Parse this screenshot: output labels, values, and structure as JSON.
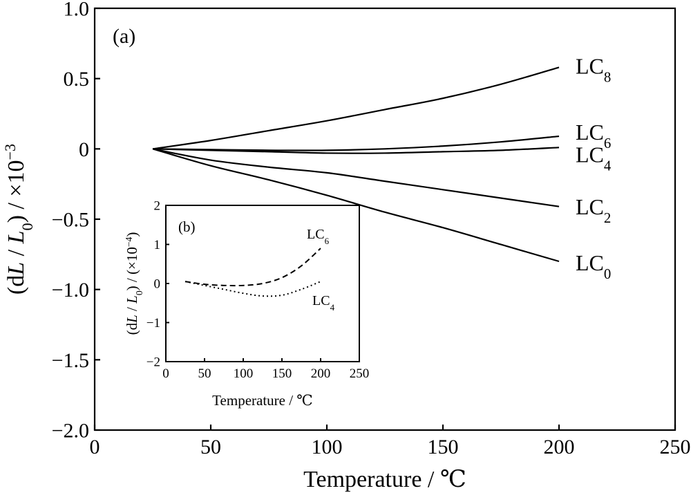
{
  "chart_data": [
    {
      "type": "line",
      "panel_label": "(a)",
      "xlabel": "Temperature / ℃",
      "ylabel": "(dL / L0) / ×10⁻³",
      "ylabel_parts": [
        "(d",
        "L",
        " / ",
        "L",
        "0",
        ") / ×10",
        "−3"
      ],
      "xlim": [
        0,
        250
      ],
      "ylim": [
        -2.0,
        1.0
      ],
      "xticks": [
        0,
        50,
        100,
        150,
        200,
        250
      ],
      "xtick_labels": [
        "0",
        "50",
        "100",
        "150",
        "200",
        "250"
      ],
      "yticks": [
        1.0,
        0.5,
        0,
        -0.5,
        -1.0,
        -1.5,
        -2.0
      ],
      "ytick_labels": [
        "1.0",
        "0.5",
        "0",
        "−0.5",
        "−1.0",
        "−1.5",
        "−2.0"
      ],
      "series": [
        {
          "name": "LC8",
          "label_main": "LC",
          "label_sub": "8",
          "style": "solid",
          "x": [
            25,
            50,
            75,
            100,
            125,
            150,
            175,
            200
          ],
          "y": [
            0,
            0.06,
            0.13,
            0.2,
            0.28,
            0.36,
            0.46,
            0.58
          ]
        },
        {
          "name": "LC6",
          "label_main": "LC",
          "label_sub": "6",
          "style": "solid",
          "x": [
            25,
            50,
            75,
            100,
            125,
            150,
            175,
            200
          ],
          "y": [
            0,
            -0.005,
            -0.01,
            -0.01,
            0.0,
            0.02,
            0.05,
            0.09
          ]
        },
        {
          "name": "LC4",
          "label_main": "LC",
          "label_sub": "4",
          "style": "solid",
          "x": [
            25,
            50,
            75,
            100,
            125,
            150,
            175,
            200
          ],
          "y": [
            0,
            -0.01,
            -0.02,
            -0.03,
            -0.03,
            -0.02,
            -0.01,
            0.01
          ]
        },
        {
          "name": "LC2",
          "label_main": "LC",
          "label_sub": "2",
          "style": "solid",
          "x": [
            25,
            50,
            75,
            100,
            125,
            150,
            175,
            200
          ],
          "y": [
            0,
            -0.08,
            -0.13,
            -0.17,
            -0.23,
            -0.29,
            -0.35,
            -0.41
          ]
        },
        {
          "name": "LC0",
          "label_main": "LC",
          "label_sub": "0",
          "style": "solid",
          "x": [
            25,
            50,
            75,
            100,
            125,
            150,
            175,
            200
          ],
          "y": [
            0,
            -0.12,
            -0.22,
            -0.33,
            -0.45,
            -0.56,
            -0.68,
            -0.8
          ]
        }
      ]
    },
    {
      "type": "line",
      "panel_label": "(b)",
      "xlabel": "Temperature / ℃",
      "ylabel": "(dL / L0) / (×10⁻⁴)",
      "ylabel_parts": [
        "(d",
        "L",
        " / ",
        "L",
        "0",
        ") / (×10",
        "−4",
        ")"
      ],
      "xlim": [
        0,
        250
      ],
      "ylim": [
        -2,
        2
      ],
      "xticks": [
        0,
        50,
        100,
        150,
        200,
        250
      ],
      "xtick_labels": [
        "0",
        "50",
        "100",
        "150",
        "200",
        "250"
      ],
      "yticks": [
        2,
        1,
        0,
        -1,
        -2
      ],
      "ytick_labels": [
        "2",
        "1",
        "0",
        "−1",
        "−2"
      ],
      "series": [
        {
          "name": "LC6",
          "label_main": "LC",
          "label_sub": "6",
          "style": "dashed",
          "x": [
            25,
            50,
            75,
            100,
            125,
            150,
            175,
            200
          ],
          "y": [
            0.05,
            -0.02,
            -0.05,
            -0.05,
            0.0,
            0.15,
            0.45,
            0.9
          ]
        },
        {
          "name": "LC4",
          "label_main": "LC",
          "label_sub": "4",
          "style": "dotted",
          "x": [
            25,
            50,
            75,
            100,
            125,
            150,
            175,
            200
          ],
          "y": [
            0.05,
            -0.05,
            -0.15,
            -0.25,
            -0.32,
            -0.3,
            -0.15,
            0.05
          ]
        }
      ]
    }
  ]
}
